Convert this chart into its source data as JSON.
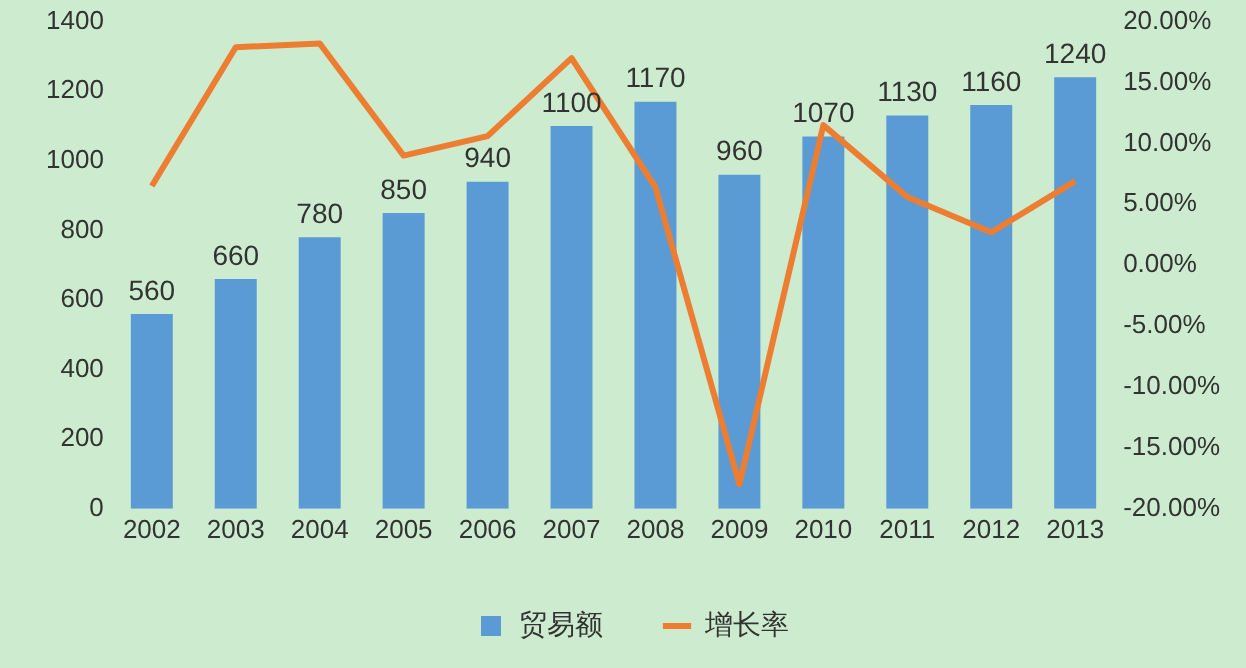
{
  "chart_data": {
    "type": "bar",
    "categories": [
      "2002",
      "2003",
      "2004",
      "2005",
      "2006",
      "2007",
      "2008",
      "2009",
      "2010",
      "2011",
      "2012",
      "2013"
    ],
    "series": [
      {
        "name": "贸易额",
        "color": "#5b9bd5",
        "values": [
          560,
          660,
          780,
          850,
          940,
          1100,
          1170,
          960,
          1070,
          1130,
          1160,
          1240
        ],
        "value_labels": [
          "560",
          "660",
          "780",
          "850",
          "940",
          "1100",
          "1170",
          "960",
          "1070",
          "1130",
          "1160",
          "1240"
        ]
      },
      {
        "name": "增长率",
        "type": "line",
        "axis": "y2",
        "color": "#ed7d31",
        "values": [
          6.5,
          17.9,
          18.2,
          9,
          10.6,
          17,
          6.4,
          -18,
          11.5,
          5.6,
          2.7,
          6.9
        ]
      }
    ],
    "ylim": [
      0,
      1400
    ],
    "yticks": [
      0,
      200,
      400,
      600,
      800,
      1000,
      1200,
      1400
    ],
    "y2lim": [
      -20,
      20
    ],
    "y2ticks": [
      {
        "value": -20,
        "label": "-20.00%"
      },
      {
        "value": -15,
        "label": "-15.00%"
      },
      {
        "value": -10,
        "label": "-10.00%"
      },
      {
        "value": -5,
        "label": "-5.00%"
      },
      {
        "value": 0,
        "label": "0.00%"
      },
      {
        "value": 5,
        "label": "5.00%"
      },
      {
        "value": 10,
        "label": "10.00%"
      },
      {
        "value": 15,
        "label": "15.00%"
      },
      {
        "value": 20,
        "label": "20.00%"
      }
    ],
    "legend": "bottom",
    "marker": "none",
    "line_style": "solid"
  }
}
